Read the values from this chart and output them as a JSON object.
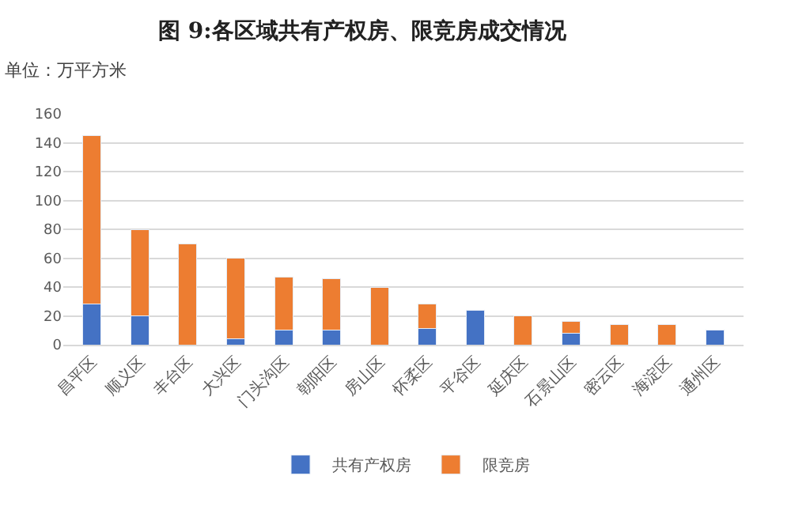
{
  "chart_data": {
    "type": "bar",
    "stacked": true,
    "title": "图 9:各区域共有产权房、限竞房成交情况",
    "ylabel": "单位：万平方米",
    "categories": [
      "昌平区",
      "顺义区",
      "丰台区",
      "大兴区",
      "门头沟区",
      "朝阳区",
      "房山区",
      "怀柔区",
      "平谷区",
      "延庆区",
      "石景山区",
      "密云区",
      "海淀区",
      "通州区"
    ],
    "series": [
      {
        "name": "共有产权房",
        "color": "#4472c4",
        "values": [
          28,
          20,
          null,
          4,
          10,
          10,
          null,
          11,
          24,
          null,
          8,
          null,
          null,
          10
        ]
      },
      {
        "name": "限竞房",
        "color": "#ed7d31",
        "values": [
          117,
          60,
          70,
          56,
          37,
          36,
          40,
          17,
          null,
          20,
          8,
          14,
          14,
          null
        ]
      }
    ],
    "ylim": [
      0,
      160
    ],
    "yticks": [
      0,
      20,
      40,
      60,
      80,
      100,
      120,
      140,
      160
    ],
    "grid": "y",
    "legend": "bottom"
  }
}
